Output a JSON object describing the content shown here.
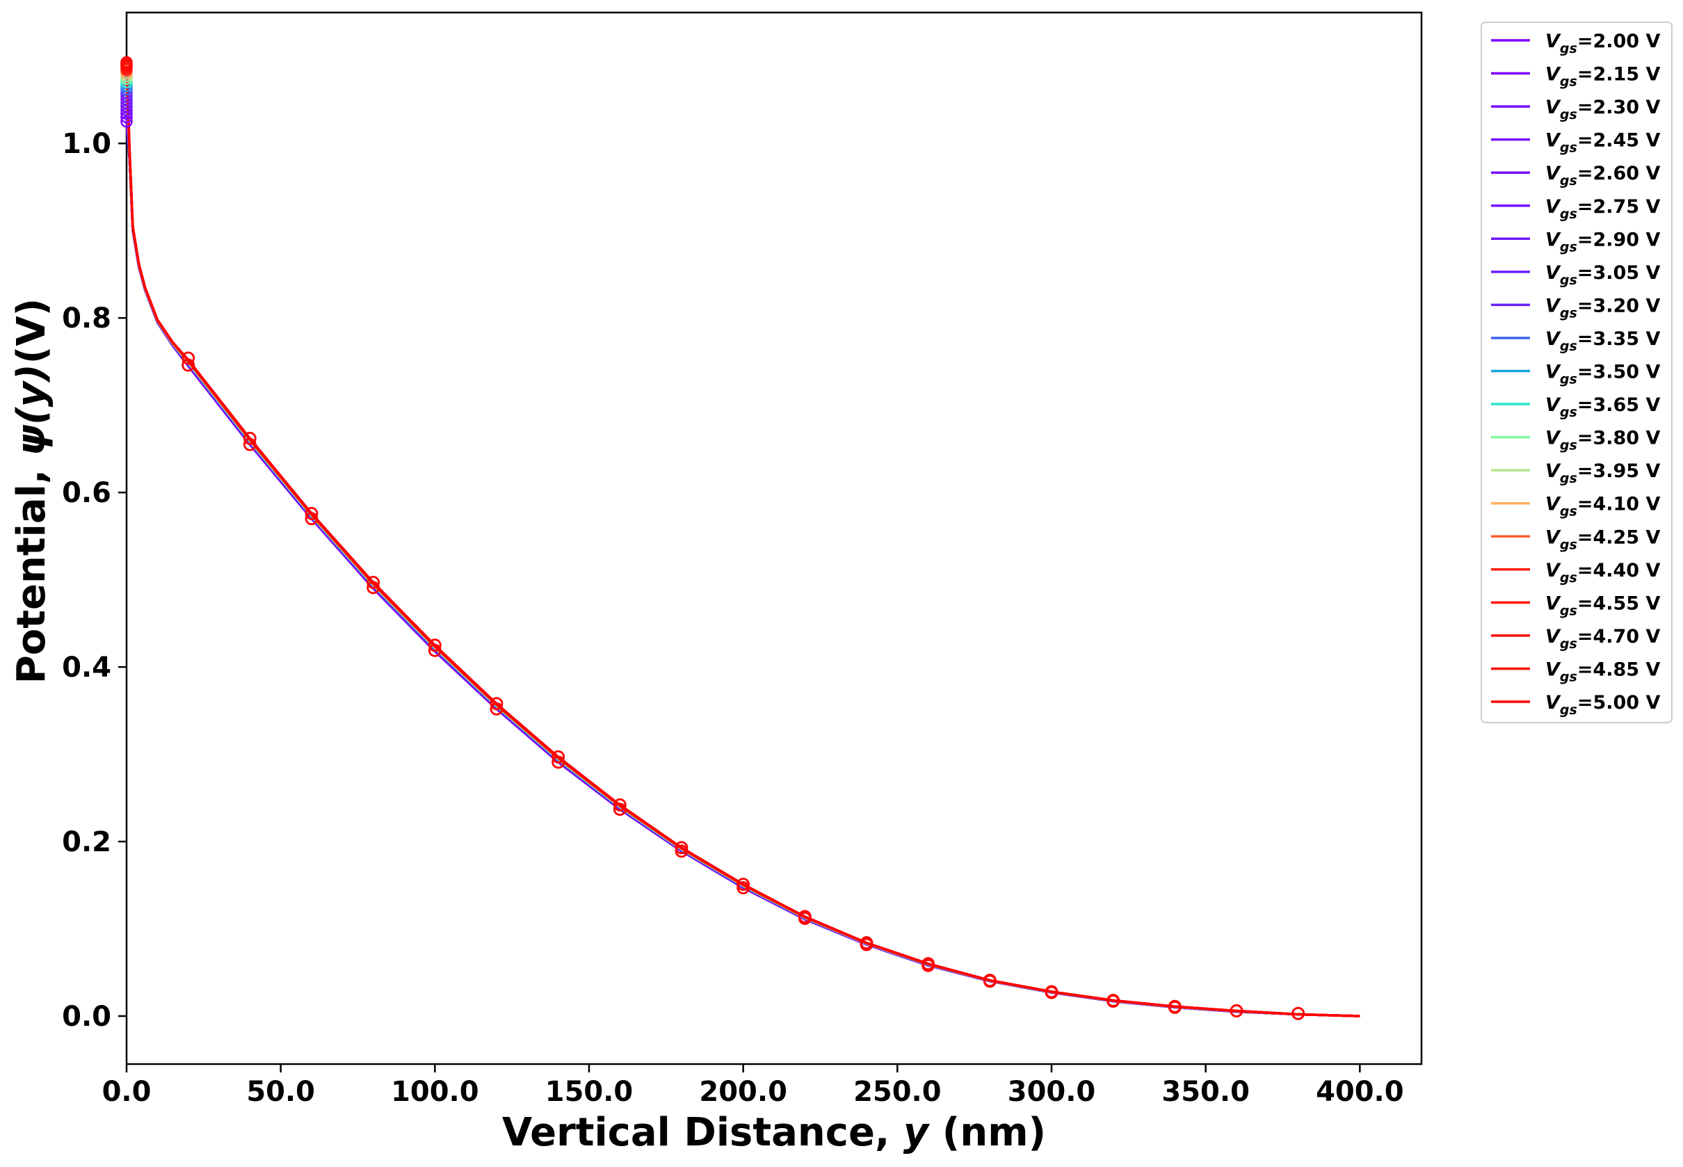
{
  "chart_data": {
    "type": "line",
    "xlabel_main": "Vertical Distance, ",
    "xlabel_var": "y",
    "xlabel_unit": " (nm)",
    "ylabel_main": "Potential, ",
    "ylabel_var": "ψ(y)",
    "ylabel_unit": "(V)",
    "xlim": [
      0,
      420
    ],
    "ylim": [
      -0.055,
      1.15
    ],
    "x_ticks": [
      0,
      50,
      100,
      150,
      200,
      250,
      300,
      350,
      400
    ],
    "x_tick_labels": [
      "0.0",
      "50.0",
      "100.0",
      "150.0",
      "200.0",
      "250.0",
      "300.0",
      "350.0",
      "400.0"
    ],
    "y_ticks": [
      0.0,
      0.2,
      0.4,
      0.6,
      0.8,
      1.0
    ],
    "y_tick_labels": [
      "0.0",
      "0.2",
      "0.4",
      "0.6",
      "0.8",
      "1.0"
    ],
    "grid": false,
    "legend_placement": "outside-right",
    "legend_prefix": "V",
    "legend_subscript": "gs",
    "series": [
      {
        "name": "=2.00 V",
        "color": "#8000ff",
        "y0": 1.025
      },
      {
        "name": "=2.15 V",
        "color": "#7f00ff",
        "y0": 1.03
      },
      {
        "name": "=2.30 V",
        "color": "#7d07ff",
        "y0": 1.034
      },
      {
        "name": "=2.45 V",
        "color": "#7a0eff",
        "y0": 1.038
      },
      {
        "name": "=2.60 V",
        "color": "#7710ff",
        "y0": 1.042
      },
      {
        "name": "=2.75 V",
        "color": "#7415ff",
        "y0": 1.046
      },
      {
        "name": "=2.90 V",
        "color": "#7118ff",
        "y0": 1.05
      },
      {
        "name": "=3.05 V",
        "color": "#6e1cff",
        "y0": 1.054
      },
      {
        "name": "=3.20 V",
        "color": "#6a22ff",
        "y0": 1.058
      },
      {
        "name": "=3.35 V",
        "color": "#3c62f0",
        "y0": 1.062
      },
      {
        "name": "=3.50 V",
        "color": "#1aa3de",
        "y0": 1.066
      },
      {
        "name": "=3.65 V",
        "color": "#2ce6c7",
        "y0": 1.07
      },
      {
        "name": "=3.80 V",
        "color": "#7cf8a0",
        "y0": 1.074
      },
      {
        "name": "=3.95 V",
        "color": "#b4e68a",
        "y0": 1.077
      },
      {
        "name": "=4.10 V",
        "color": "#ffb060",
        "y0": 1.08
      },
      {
        "name": "=4.25 V",
        "color": "#ff5c34",
        "y0": 1.083
      },
      {
        "name": "=4.40 V",
        "color": "#ff1c10",
        "y0": 1.085
      },
      {
        "name": "=4.55 V",
        "color": "#ff140a",
        "y0": 1.087
      },
      {
        "name": "=4.70 V",
        "color": "#ff0c06",
        "y0": 1.089
      },
      {
        "name": "=4.85 V",
        "color": "#ff0603",
        "y0": 1.091
      },
      {
        "name": "=5.00 V",
        "color": "#ff0000",
        "y0": 1.093
      }
    ],
    "curve_x": [
      0,
      1,
      2,
      4,
      6,
      10,
      15,
      20,
      40,
      60,
      80,
      100,
      120,
      140,
      160,
      180,
      200,
      220,
      240,
      260,
      280,
      300,
      320,
      340,
      360,
      380,
      400
    ],
    "curve_y_low": [
      null,
      0.98,
      0.9,
      0.858,
      0.832,
      0.795,
      0.768,
      0.745,
      0.655,
      0.57,
      0.49,
      0.418,
      0.352,
      0.291,
      0.237,
      0.189,
      0.147,
      0.111,
      0.082,
      0.058,
      0.04,
      0.027,
      0.017,
      0.01,
      0.005,
      0.002,
      0.0
    ],
    "curve_y_high": [
      null,
      0.99,
      0.905,
      0.862,
      0.835,
      0.798,
      0.772,
      0.752,
      0.662,
      0.576,
      0.497,
      0.425,
      0.358,
      0.297,
      0.242,
      0.193,
      0.151,
      0.114,
      0.084,
      0.06,
      0.041,
      0.028,
      0.018,
      0.011,
      0.006,
      0.002,
      0.0
    ],
    "marker_x": [
      20,
      40,
      60,
      80,
      100,
      120,
      140,
      160,
      180,
      200,
      220,
      240,
      260,
      280,
      300,
      320,
      340,
      360,
      380
    ],
    "marker_y_low": [
      0.746,
      0.655,
      0.57,
      0.491,
      0.419,
      0.352,
      0.291,
      0.237,
      0.189,
      0.147,
      0.112,
      0.082,
      0.058,
      0.04,
      0.027,
      0.017,
      0.01,
      0.006,
      0.003
    ],
    "marker_y_high": [
      0.754,
      0.662,
      0.576,
      0.497,
      0.425,
      0.358,
      0.297,
      0.242,
      0.193,
      0.151,
      0.114,
      0.084,
      0.06,
      0.041,
      0.028,
      0.018,
      0.011,
      0.006,
      0.003
    ],
    "marker_color": "#ff0000"
  }
}
